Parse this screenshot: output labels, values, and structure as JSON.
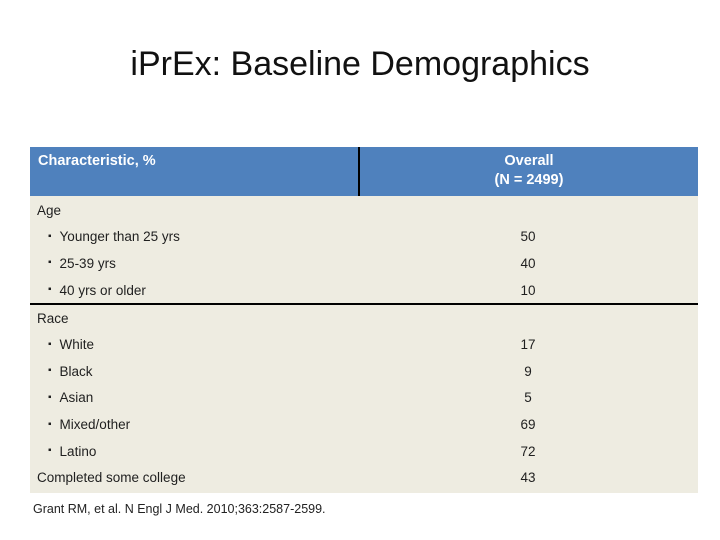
{
  "slide": {
    "title": "iPrEx: Baseline Demographics",
    "citation": "Grant RM, et al. N Engl J Med. 2010;363:2587-2599."
  },
  "table": {
    "bullet_char": "▪",
    "columns": {
      "characteristic": "Characteristic, %",
      "overall_line1": "Overall",
      "overall_line2": "(N = 2499)"
    },
    "rows": [
      {
        "type": "category",
        "label": "Age",
        "value": ""
      },
      {
        "type": "item",
        "label": "Younger than 25 yrs",
        "value": "50"
      },
      {
        "type": "item",
        "label": "25-39 yrs",
        "value": "40"
      },
      {
        "type": "item",
        "label": "40 yrs or older",
        "value": "10"
      },
      {
        "type": "divider"
      },
      {
        "type": "category",
        "label": "Race",
        "value": ""
      },
      {
        "type": "item",
        "label": "White",
        "value": "17"
      },
      {
        "type": "item",
        "label": "Black",
        "value": "9"
      },
      {
        "type": "item",
        "label": "Asian",
        "value": "5"
      },
      {
        "type": "item",
        "label": "Mixed/other",
        "value": "69"
      },
      {
        "type": "item",
        "label": "Latino",
        "value": "72"
      },
      {
        "type": "category",
        "label": "Completed some college",
        "value": "43"
      }
    ],
    "colors": {
      "header_bg": "#4f81bd",
      "header_text": "#ffffff",
      "body_bg": "#eeece1",
      "body_text": "#1f1f1f",
      "divider_line": "#000000"
    }
  }
}
